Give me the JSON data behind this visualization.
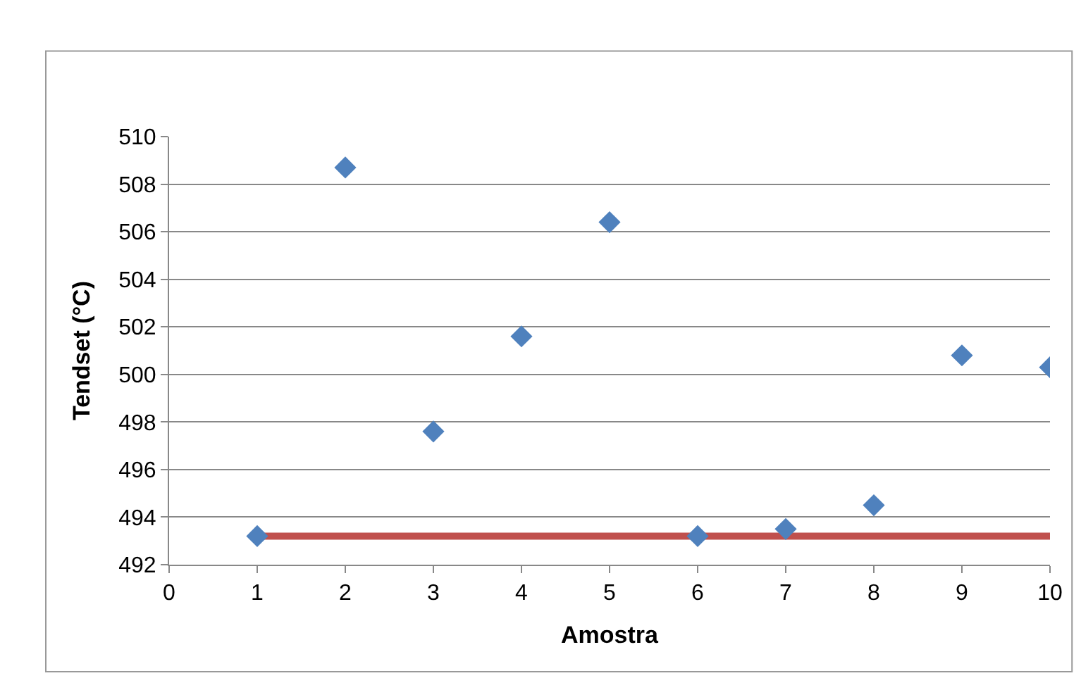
{
  "chart_data": {
    "type": "scatter",
    "xlabel": "Amostra",
    "ylabel": "Tendset (°C)",
    "xlim": [
      0,
      10
    ],
    "xticks": [
      0,
      1,
      2,
      3,
      4,
      5,
      6,
      7,
      8,
      9,
      10
    ],
    "ylim": [
      492,
      510
    ],
    "yticks": [
      492,
      494,
      496,
      498,
      500,
      502,
      504,
      506,
      508,
      510
    ],
    "grid": "y",
    "marker": "diamond",
    "series": [
      {
        "color": "#4f81bd",
        "x": [
          1,
          2,
          3,
          4,
          5,
          6,
          7,
          8,
          9,
          10
        ],
        "values": [
          493.2,
          508.7,
          497.6,
          501.6,
          506.4,
          493.2,
          493.5,
          494.5,
          500.8,
          500.3
        ]
      },
      {
        "type": "line",
        "color": "#c0504d",
        "marker": "none",
        "line_style": "solid",
        "x": [
          1,
          10
        ],
        "values": [
          493.2,
          493.2
        ]
      }
    ]
  }
}
